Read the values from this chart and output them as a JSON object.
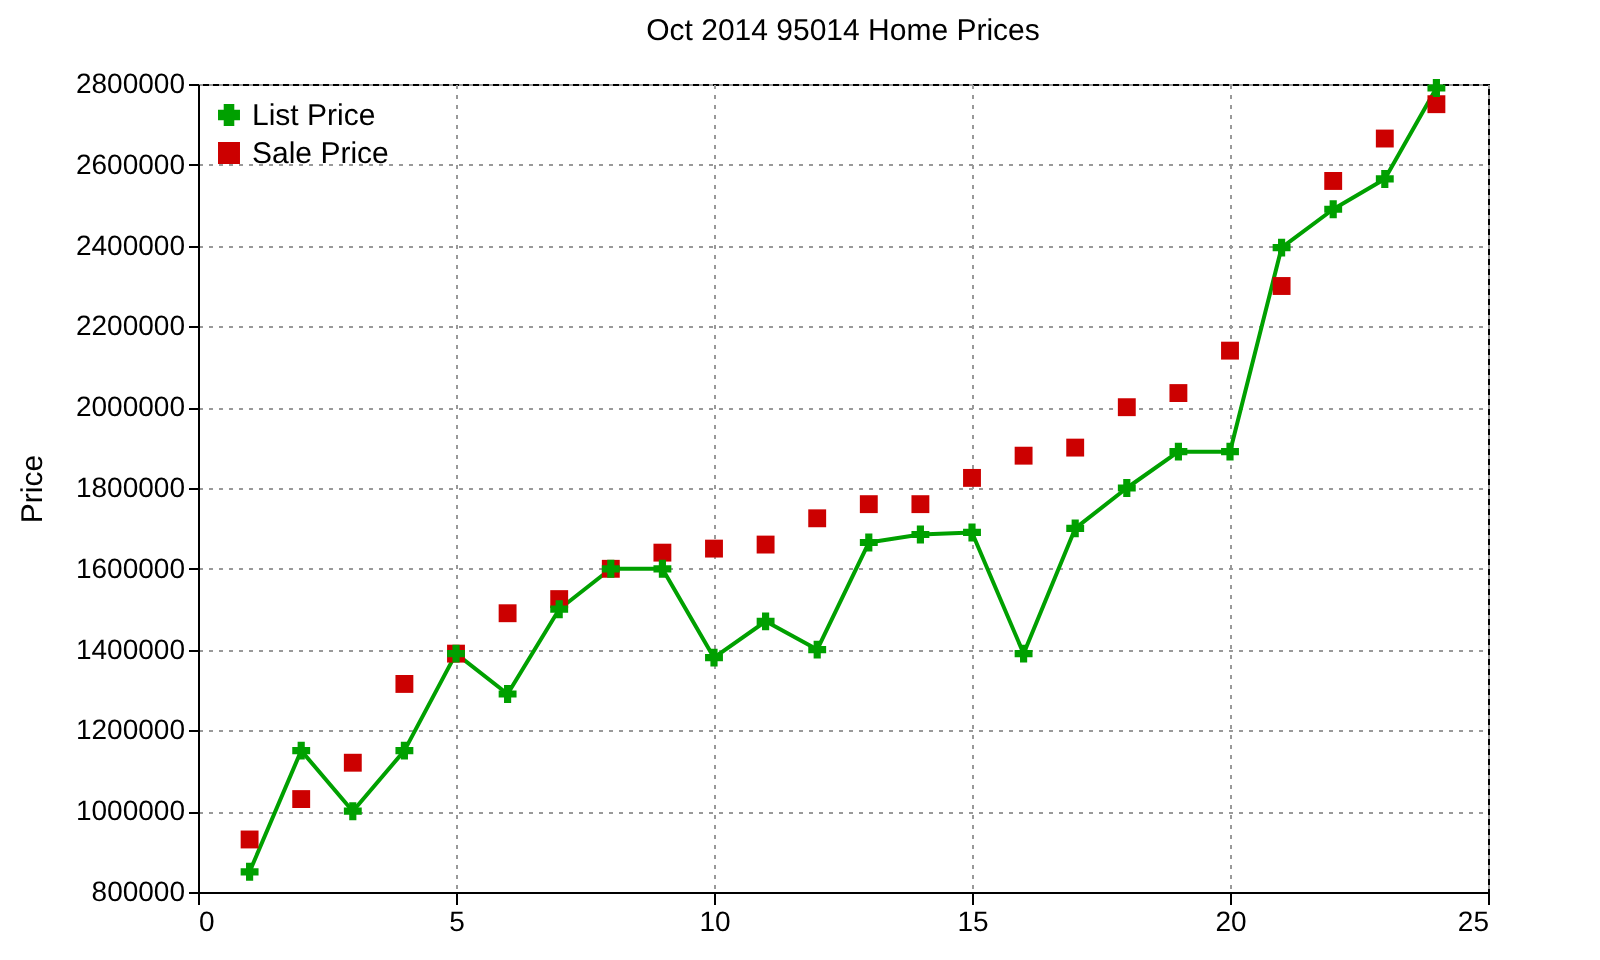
{
  "chart_data": {
    "type": "line",
    "title": "Oct 2014 95014 Home Prices",
    "ylabel": "Price",
    "x": [
      1,
      2,
      3,
      4,
      5,
      6,
      7,
      8,
      9,
      10,
      11,
      12,
      13,
      14,
      15,
      16,
      17,
      18,
      19,
      20,
      21,
      22,
      23,
      24
    ],
    "series": [
      {
        "name": "List Price",
        "type": "line",
        "marker": "cross",
        "color": "#00a000",
        "values": [
          850000,
          1150000,
          1000000,
          1150000,
          1390000,
          1290000,
          1500000,
          1600000,
          1600000,
          1380000,
          1470000,
          1400000,
          1665000,
          1685000,
          1690000,
          1390000,
          1700000,
          1800000,
          1890000,
          1890000,
          2395000,
          2490000,
          2565000,
          2790000
        ]
      },
      {
        "name": "Sale Price",
        "type": "scatter",
        "marker": "square",
        "color": "#cc0000",
        "values": [
          930000,
          1030000,
          1120000,
          1315000,
          1390000,
          1490000,
          1525000,
          1600000,
          1640000,
          1650000,
          1660000,
          1725000,
          1760000,
          1760000,
          1825000,
          1880000,
          1900000,
          2000000,
          2035000,
          2140000,
          2300000,
          2560000,
          2665000,
          2750000
        ]
      }
    ],
    "xlim": [
      0,
      25
    ],
    "xticks": [
      0,
      5,
      10,
      15,
      20,
      25
    ],
    "ylim": [
      800000,
      2800000
    ],
    "yticks": [
      800000,
      1000000,
      1200000,
      1400000,
      1600000,
      1800000,
      2000000,
      2200000,
      2400000,
      2600000,
      2800000
    ],
    "grid": true,
    "legend": "top left"
  }
}
